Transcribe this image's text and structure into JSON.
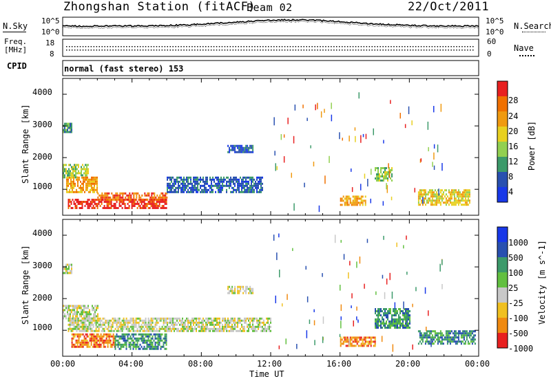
{
  "header": {
    "title": "Zhongshan Station (fitACF)",
    "beam": "Beam 02",
    "date": "22/Oct/2011"
  },
  "noise_panel": {
    "left_label": "N.Sky",
    "right_label": "N.Search",
    "top_tick": "10^5",
    "bottom_tick": "10^0"
  },
  "freq_panel": {
    "left_label_1": "Freq.",
    "left_label_2": "[MHz]",
    "left_ticks": [
      "18",
      "8"
    ],
    "right_label": "Nave",
    "right_ticks": [
      "60",
      "0"
    ]
  },
  "cpid_panel": {
    "label": "CPID",
    "text": "normal (fast stereo) 153"
  },
  "chart_data": [
    {
      "type": "heatmap",
      "ylabel": "Slant Range [km]",
      "xlim": [
        "00:00",
        "24:00"
      ],
      "ylim": [
        180,
        4500
      ],
      "yticks": [
        "1000",
        "2000",
        "3000",
        "4000"
      ],
      "colorbar_label": "Power [dB]",
      "colorbar_ticks": [
        "4",
        "8",
        "12",
        "16",
        "20",
        "24",
        "28"
      ],
      "colorbar_colors": [
        "#1838e8",
        "#2850b0",
        "#3c9a6a",
        "#92d050",
        "#e8d020",
        "#f09a10",
        "#f07000",
        "#e82020"
      ],
      "regions": [
        {
          "t": [
            0.0,
            0.5
          ],
          "r": [
            2800,
            3100
          ],
          "level": 2
        },
        {
          "t": [
            0.0,
            1.5
          ],
          "r": [
            1400,
            1800
          ],
          "level": 3
        },
        {
          "t": [
            0.2,
            2.0
          ],
          "r": [
            900,
            1400
          ],
          "level": 5
        },
        {
          "t": [
            0.3,
            6.0
          ],
          "r": [
            400,
            700
          ],
          "level": 7
        },
        {
          "t": [
            2.0,
            6.0
          ],
          "r": [
            650,
            900
          ],
          "level": 6
        },
        {
          "t": [
            6.0,
            11.5
          ],
          "r": [
            900,
            1400
          ],
          "level": 1
        },
        {
          "t": [
            9.5,
            11.0
          ],
          "r": [
            2200,
            2400
          ],
          "level": 1
        },
        {
          "t": [
            16.0,
            17.5
          ],
          "r": [
            500,
            800
          ],
          "level": 5
        },
        {
          "t": [
            18.0,
            19.0
          ],
          "r": [
            1300,
            1700
          ],
          "level": 3
        },
        {
          "t": [
            20.5,
            23.5
          ],
          "r": [
            500,
            1000
          ],
          "level": 4
        }
      ]
    },
    {
      "type": "heatmap",
      "ylabel": "Slant Range [km]",
      "xlabel": "Time UT",
      "xlim": [
        "00:00",
        "24:00"
      ],
      "ylim": [
        180,
        4500
      ],
      "yticks": [
        "1000",
        "2000",
        "3000",
        "4000"
      ],
      "xticks": [
        "00:00",
        "04:00",
        "08:00",
        "12:00",
        "16:00",
        "20:00",
        "00:00"
      ],
      "colorbar_label": "Velocity [m s^-1]",
      "colorbar_ticks": [
        "1000",
        "500",
        "100",
        "25",
        "-25",
        "-100",
        "-500",
        "-1000"
      ],
      "colorbar_colors": [
        "#1838e8",
        "#2850b0",
        "#3c9a6a",
        "#62c040",
        "#c8c8c8",
        "#f0c020",
        "#f08a10",
        "#e82020"
      ],
      "regions": [
        {
          "t": [
            0.0,
            0.5
          ],
          "r": [
            2800,
            3100
          ],
          "level": 4
        },
        {
          "t": [
            0.0,
            2.0
          ],
          "r": [
            1400,
            1800
          ],
          "level": 4
        },
        {
          "t": [
            0.3,
            6.0
          ],
          "r": [
            1000,
            1400
          ],
          "level": 4
        },
        {
          "t": [
            0.5,
            3.0
          ],
          "r": [
            500,
            900
          ],
          "level": 6
        },
        {
          "t": [
            3.0,
            6.0
          ],
          "r": [
            400,
            900
          ],
          "level": 2
        },
        {
          "t": [
            6.0,
            12.0
          ],
          "r": [
            1000,
            1400
          ],
          "level": 4
        },
        {
          "t": [
            9.5,
            11.0
          ],
          "r": [
            2200,
            2400
          ],
          "level": 4
        },
        {
          "t": [
            16.0,
            18.0
          ],
          "r": [
            500,
            800
          ],
          "level": 6
        },
        {
          "t": [
            18.0,
            20.0
          ],
          "r": [
            1100,
            1700
          ],
          "level": 2
        },
        {
          "t": [
            20.5,
            23.8
          ],
          "r": [
            600,
            1000
          ],
          "level": 2
        }
      ]
    }
  ]
}
